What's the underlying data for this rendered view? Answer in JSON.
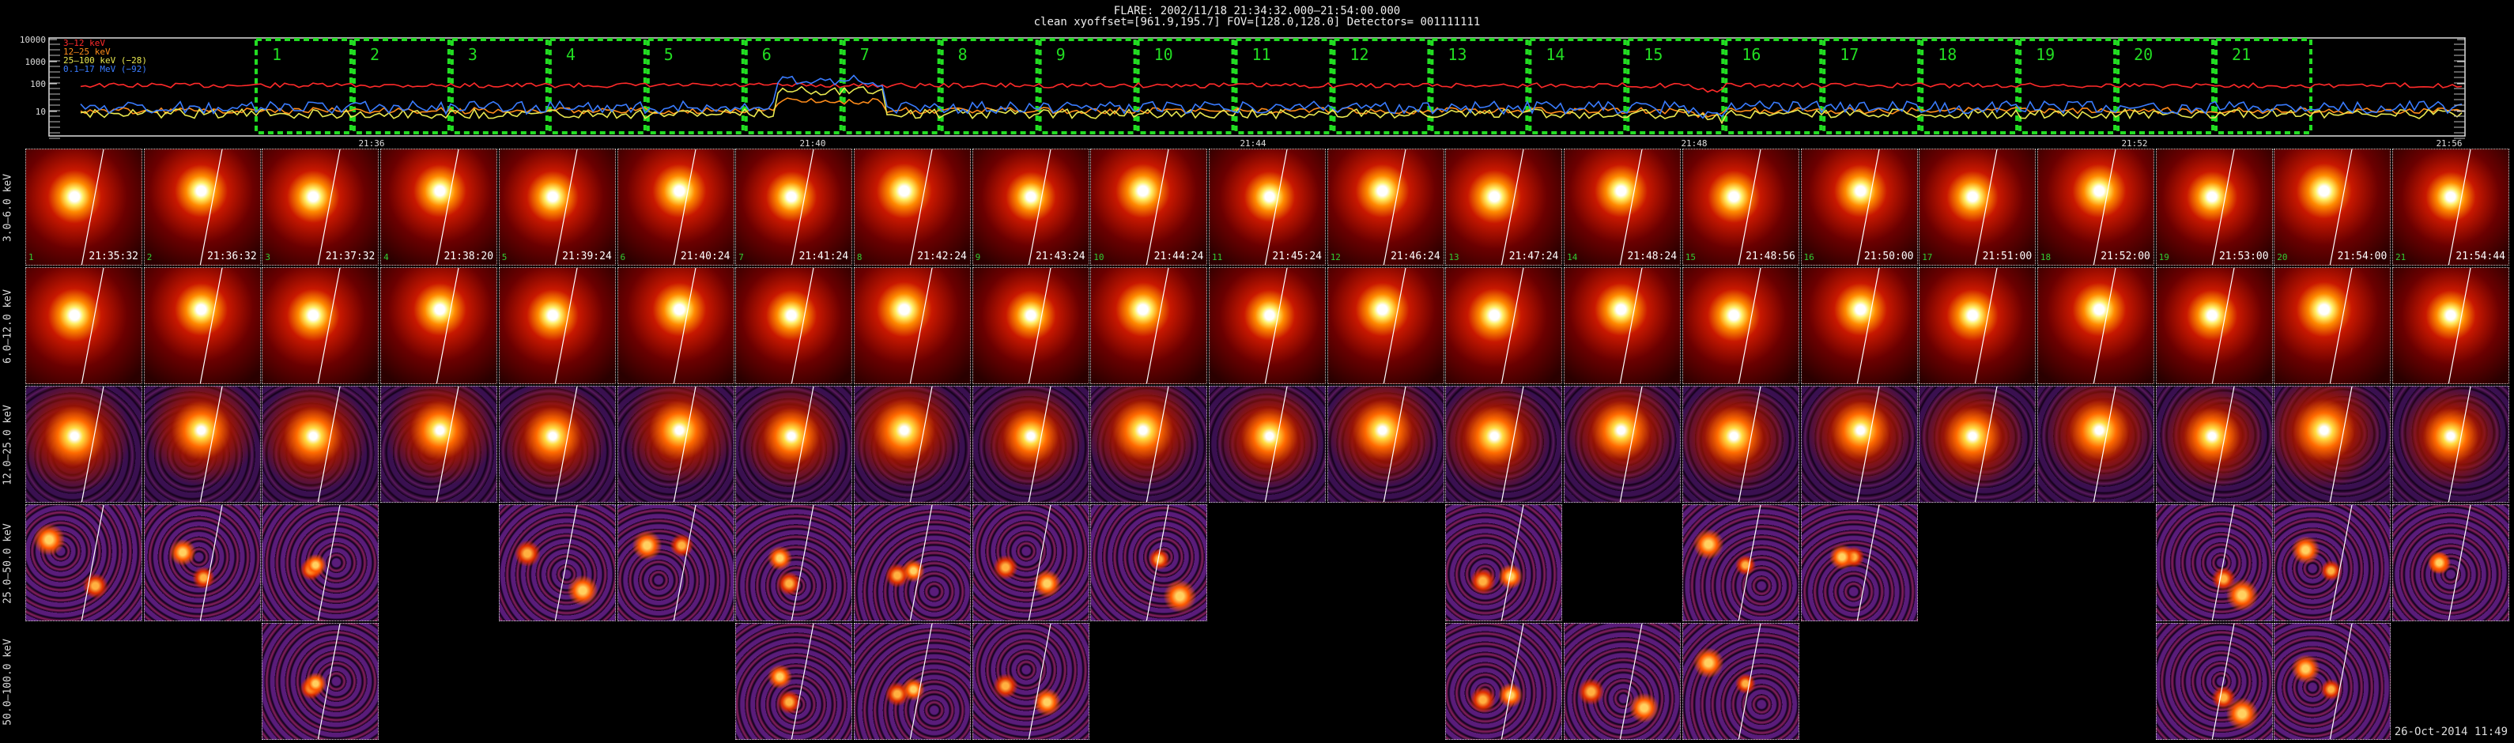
{
  "header": {
    "title": "FLARE: 2002/11/18 21:34:32.000–21:54:00.000",
    "subtitle": "clean    xyoffset=[961.9,195.7]    FOV=[128.0,128.0]    Detectors= 001111111"
  },
  "lightcurve": {
    "legend": [
      {
        "label": "3–12 keV",
        "color": "#ff2a2a"
      },
      {
        "label": "12–25 keV",
        "color": "#ff8c1a"
      },
      {
        "label": "25–100 keV (−28)",
        "color": "#e8e850"
      },
      {
        "label": "0.1–17 MeV (−92)",
        "color": "#3a7cff"
      }
    ],
    "yticks": [
      "10000",
      "1000",
      "100",
      "10"
    ],
    "xticks": [
      "21:36",
      "21:40",
      "21:44",
      "21:48",
      "21:52",
      "21:56"
    ],
    "intervals": [
      "1",
      "2",
      "3",
      "4",
      "5",
      "6",
      "7",
      "8",
      "9",
      "10",
      "11",
      "12",
      "13",
      "14",
      "15",
      "16",
      "17",
      "18",
      "19",
      "20",
      "21"
    ],
    "interval_color": "#22dd22"
  },
  "rows": [
    {
      "label": "3.0–6.0 keV",
      "style": "red"
    },
    {
      "label": "6.0–12.0 keV",
      "style": "red"
    },
    {
      "label": "12.0–25.0 keV",
      "style": "mix"
    },
    {
      "label": "25.0–50.0 keV",
      "style": "noise"
    },
    {
      "label": "50.0–100.0 keV",
      "style": "noise"
    }
  ],
  "times": [
    "21:35:32",
    "21:36:32",
    "21:37:32",
    "21:38:20",
    "21:39:24",
    "21:40:24",
    "21:41:24",
    "21:42:24",
    "21:43:24",
    "21:44:24",
    "21:45:24",
    "21:46:24",
    "21:47:24",
    "21:48:24",
    "21:48:56",
    "21:50:00",
    "21:51:00",
    "21:52:00",
    "21:53:00",
    "21:54:00",
    "21:54:44"
  ],
  "presence": [
    [
      1,
      1,
      1,
      1,
      1,
      1,
      1,
      1,
      1,
      1,
      1,
      1,
      1,
      1,
      1,
      1,
      1,
      1,
      1,
      1,
      1
    ],
    [
      1,
      1,
      1,
      1,
      1,
      1,
      1,
      1,
      1,
      1,
      1,
      1,
      1,
      1,
      1,
      1,
      1,
      1,
      1,
      1,
      1
    ],
    [
      1,
      1,
      1,
      1,
      1,
      1,
      1,
      1,
      1,
      1,
      1,
      1,
      1,
      1,
      1,
      1,
      1,
      1,
      1,
      1,
      1
    ],
    [
      1,
      1,
      1,
      0,
      1,
      1,
      1,
      1,
      1,
      1,
      0,
      0,
      1,
      0,
      1,
      1,
      0,
      0,
      1,
      1,
      1
    ],
    [
      0,
      0,
      1,
      0,
      0,
      0,
      1,
      1,
      1,
      0,
      0,
      0,
      1,
      1,
      1,
      0,
      0,
      0,
      1,
      1,
      0
    ]
  ],
  "footer": {
    "date": "26-Oct-2014 11:49"
  }
}
